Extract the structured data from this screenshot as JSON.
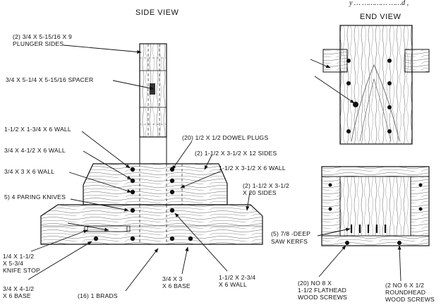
{
  "header_fragment": "y … ………… ……d ,",
  "views": {
    "side_title": "SIDE VIEW",
    "end_title": "END VIEW"
  },
  "labels": {
    "plunger_sides_1": "(2) 3/4  X 5-15/16  X 9",
    "plunger_sides_2": "PLUNGER SIDES",
    "spacer": "3/4  X 5-1/4  X 5-15/16  SPACER",
    "wall_a": "1-1/2  X 1-3/4  X 6  WALL",
    "wall_b": "3/4  X 4-1/2  X 6  WALL",
    "wall_c": "3/4  X 3  X 6  WALL",
    "paring_knives": "5) 4  PARING KNIVES",
    "knife_stop_1": "1/4  X 1-1/2",
    "knife_stop_2": "X 5-3/4",
    "knife_stop_3": "KNIFE STOP",
    "base_left_1": "3/4  X 4-1/2",
    "base_left_2": "X 6  BASE",
    "brads": "(16) 1  BRADS",
    "base_mid_1": "3/4  X 3",
    "base_mid_2": "X 6  BASE",
    "wall_bottom_1": "1-1/2  X 2-3/4",
    "wall_bottom_2": "X 6  WALL",
    "dowel_plugs": "(20) 1/2  X 1/2  DOWEL PLUGS",
    "sides_12": "(2) 1-1/2  X 3-1/2  X 12  SIDES",
    "wall_right": "1-1/2  X 3-1/2  X 6  WALL",
    "sides_20_1": "(2) 1-1/2  X 3-1/2",
    "sides_20_2": "X 20  SIDES",
    "saw_kerfs_1": "(5) 7/8 -DEEP",
    "saw_kerfs_2": "SAW KERFS",
    "flathead_1": "(20) NO  8  X",
    "flathead_2": "1-1/2  FLATHEAD",
    "flathead_3": "WOOD SCREWS",
    "roundhead_1": "(2 NO  6 X 1/2",
    "roundhead_2": "ROUNDHEAD",
    "roundhead_3": "WOOD SCREWS"
  }
}
